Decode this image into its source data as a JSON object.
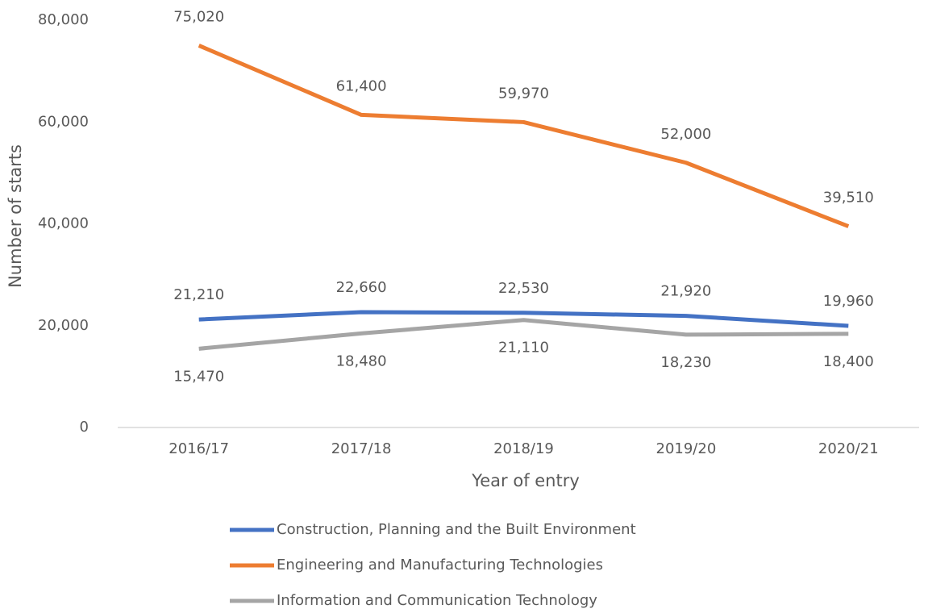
{
  "chart_data": {
    "type": "line",
    "x_label": "Year of entry",
    "y_label": "Number of starts",
    "categories": [
      "2016/17",
      "2017/18",
      "2018/19",
      "2019/20",
      "2020/21"
    ],
    "series": [
      {
        "name": "Construction, Planning and the Built Environment",
        "color": "#4472c4",
        "values": [
          21210,
          22660,
          22530,
          21920,
          19960
        ],
        "value_labels": [
          "21,210",
          "22,660",
          "22,530",
          "21,920",
          "19,960"
        ]
      },
      {
        "name": "Engineering and Manufacturing Technologies",
        "color": "#ed7d31",
        "values": [
          75020,
          61400,
          59970,
          52000,
          39510
        ],
        "value_labels": [
          "75,020",
          "61,400",
          "59,970",
          "52,000",
          "39,510"
        ]
      },
      {
        "name": "Information and Communication Technology",
        "color": "#a5a5a5",
        "values": [
          15470,
          18480,
          21110,
          18230,
          18400
        ],
        "value_labels": [
          "15,470",
          "18,480",
          "21,110",
          "18,230",
          "18,400"
        ]
      }
    ],
    "ylim": [
      0,
      80000
    ],
    "yticks": [
      0,
      {
        "value": 20000,
        "label": "20,000"
      },
      {
        "value": 40000,
        "label": "40,000"
      },
      {
        "value": 60000,
        "label": "60,000"
      },
      {
        "value": 80000,
        "label": "80,000"
      }
    ],
    "grid": false,
    "legend": "bottom"
  }
}
